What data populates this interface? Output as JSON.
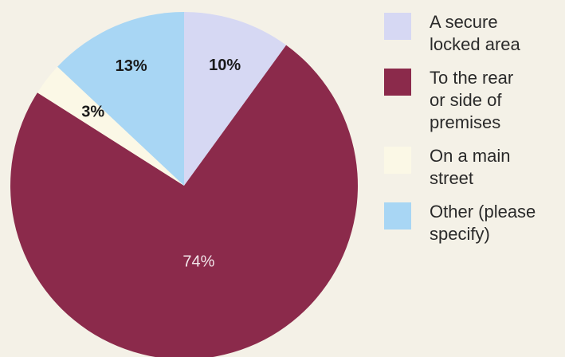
{
  "chart_data": {
    "type": "pie",
    "slices": [
      {
        "label": "A secure locked area",
        "value": 10,
        "display": "10%",
        "color": "#d6d8f3"
      },
      {
        "label": "To the rear or side of premises",
        "value": 74,
        "display": "74%",
        "color": "#8b2a4b"
      },
      {
        "label": "On a main street",
        "value": 3,
        "display": "3%",
        "color": "#fbf8e6"
      },
      {
        "label": "Other (please specify)",
        "value": 13,
        "display": "13%",
        "color": "#a8d6f4"
      }
    ],
    "start": "12 o'clock",
    "direction": "clockwise",
    "legend_position": "right"
  },
  "legend": {
    "items": [
      {
        "label": "A secure\nlocked area",
        "color": "#d6d8f3"
      },
      {
        "label": "To the rear\nor side of\npremises",
        "color": "#8b2a4b"
      },
      {
        "label": "On a main\nstreet",
        "color": "#fbf8e6"
      },
      {
        "label": "Other (please\nspecify)",
        "color": "#a8d6f4"
      }
    ]
  }
}
